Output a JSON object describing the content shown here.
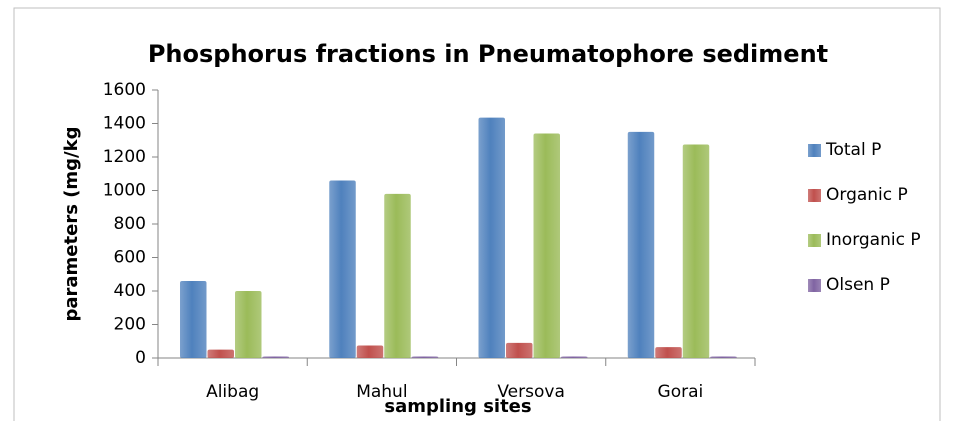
{
  "chart_data": {
    "type": "bar",
    "title": "Phosphorus fractions in Pneumatophore sediment",
    "x_label": "sampling sites",
    "y_label": "parameters (mg/kg",
    "categories": [
      "Alibag",
      "Mahul",
      "Versova",
      "Gorai"
    ],
    "series": [
      {
        "name": "Total P",
        "color": "#4f81bd",
        "values": [
          460,
          1060,
          1435,
          1350
        ]
      },
      {
        "name": "Organic P",
        "color": "#c0504d",
        "values": [
          50,
          75,
          90,
          65
        ]
      },
      {
        "name": "Inorganic P",
        "color": "#9bbb59",
        "values": [
          400,
          980,
          1340,
          1275
        ]
      },
      {
        "name": "Olsen P",
        "color": "#8064a2",
        "values": [
          3,
          5,
          2,
          6
        ]
      }
    ],
    "ylim": [
      0,
      1600
    ],
    "yticks": [
      0,
      200,
      400,
      600,
      800,
      1000,
      1200,
      1400,
      1600
    ],
    "legend": "right"
  }
}
